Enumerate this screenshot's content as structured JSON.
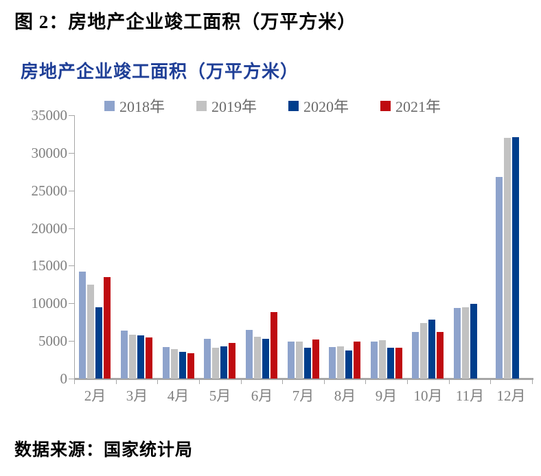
{
  "figure": {
    "caption": "图 2：房地产企业竣工面积（万平方米）",
    "source": "数据来源：国家统计局"
  },
  "chart_data": {
    "type": "bar",
    "title": "房地产企业竣工面积（万平方米）",
    "title_color": "#1f3f97",
    "categories": [
      "2月",
      "3月",
      "4月",
      "5月",
      "6月",
      "7月",
      "8月",
      "9月",
      "10月",
      "11月",
      "12月"
    ],
    "series": [
      {
        "name": "2018年",
        "color": "#8ea3cc",
        "values": [
          14200,
          6400,
          4200,
          5300,
          6500,
          4900,
          4200,
          4900,
          6200,
          9400,
          26800
        ]
      },
      {
        "name": "2019年",
        "color": "#c2c2c2",
        "values": [
          12500,
          5850,
          3900,
          4100,
          5600,
          4950,
          4300,
          5100,
          7400,
          9500,
          32000
        ]
      },
      {
        "name": "2020年",
        "color": "#003e8c",
        "values": [
          9500,
          5750,
          3600,
          4250,
          5300,
          4100,
          3700,
          4100,
          7800,
          9900,
          32100
        ]
      },
      {
        "name": "2021年",
        "color": "#bf0b10",
        "values": [
          13500,
          5500,
          3400,
          4700,
          8800,
          5200,
          4900,
          4100,
          6200,
          null,
          null
        ]
      }
    ],
    "ylim": [
      0,
      35000
    ],
    "ytick_step": 5000,
    "ytick_labels": [
      "0",
      "5000",
      "10000",
      "15000",
      "20000",
      "25000",
      "30000",
      "35000"
    ],
    "grid": false,
    "legend_position": "top",
    "axis_color": "#a6a6a6",
    "tick_label_color": "#7f7f7f"
  }
}
